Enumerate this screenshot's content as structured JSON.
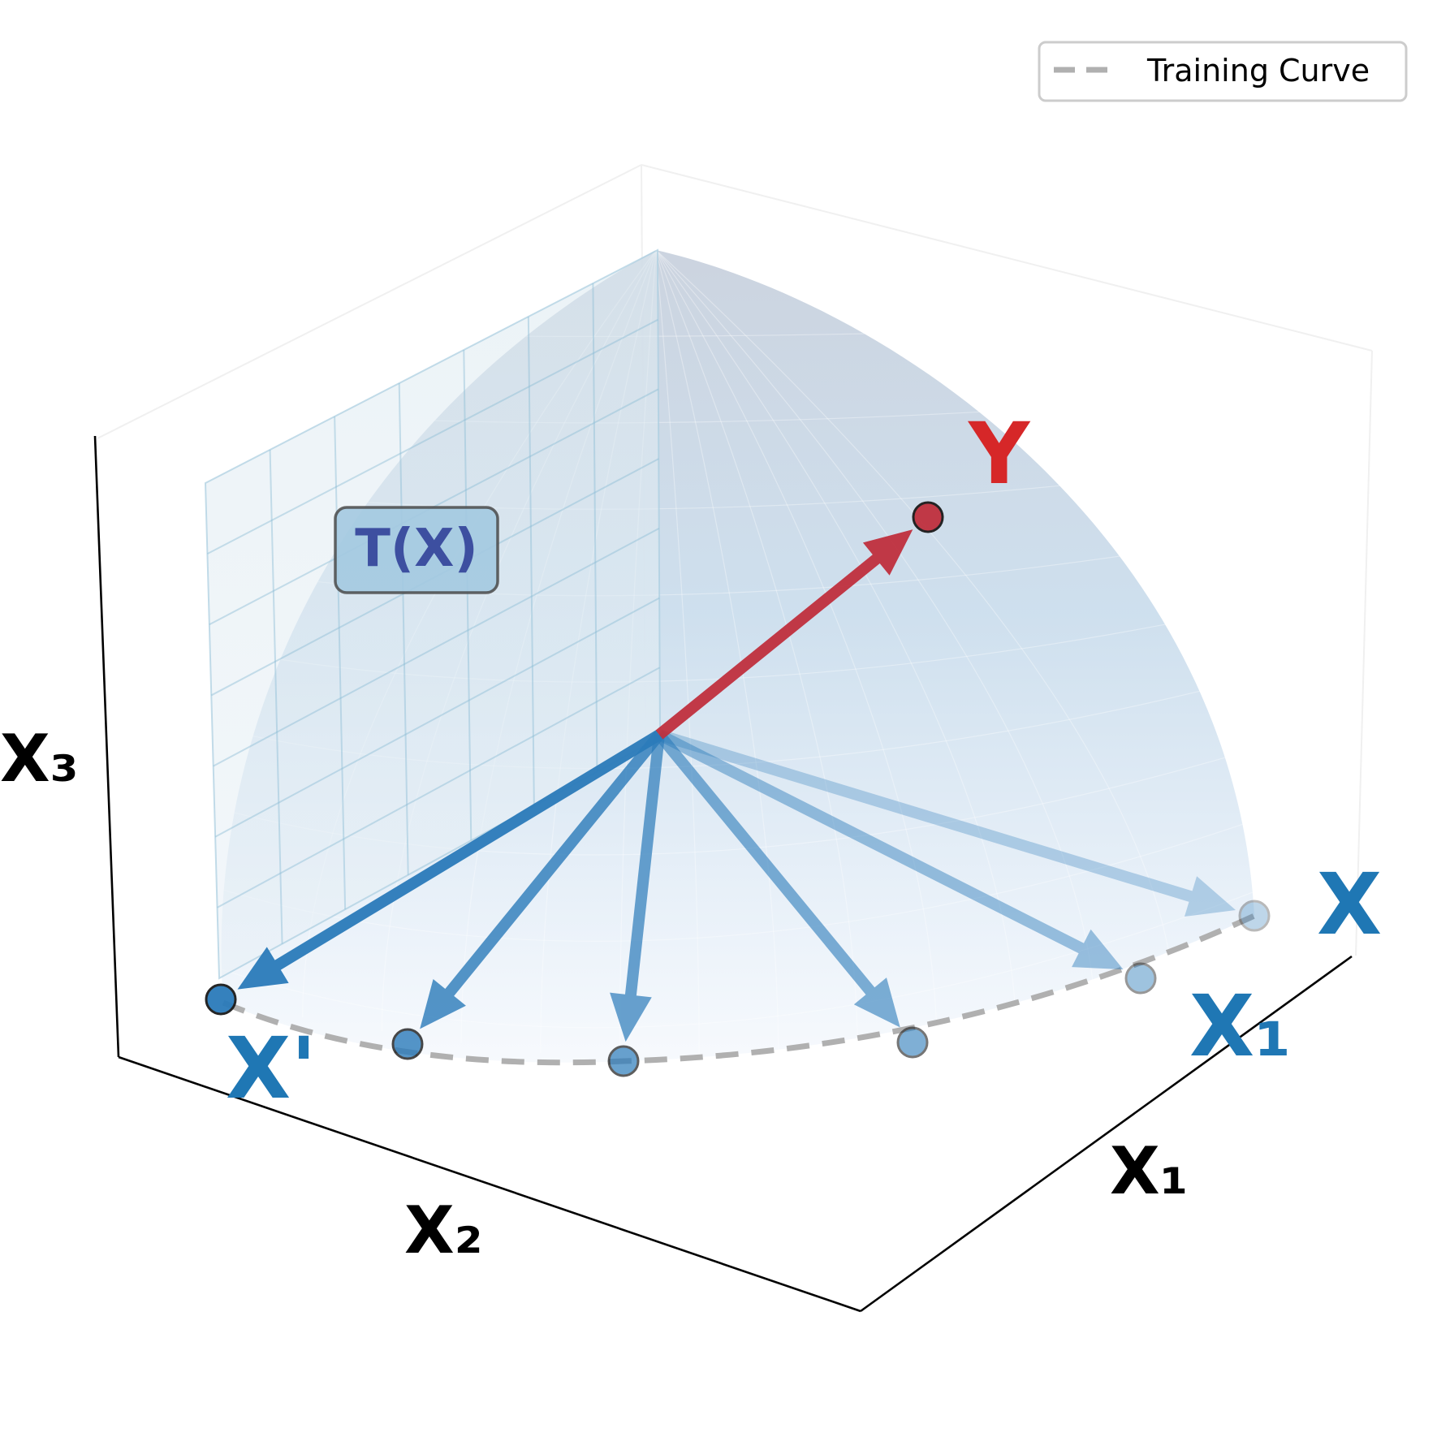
{
  "legend": {
    "entries": [
      {
        "label": "Training Curve",
        "color": "#b0b0b0",
        "style": "dashed"
      }
    ],
    "placement": "top-right"
  },
  "axes": {
    "x1": {
      "label": "X₁"
    },
    "x2": {
      "label": "X₂"
    },
    "x3": {
      "label": "X₃"
    }
  },
  "labels": {
    "x": "X",
    "x1": "X₁",
    "x_prime": "X'",
    "y": "Y",
    "transform": "T(X)"
  },
  "colors": {
    "blue": "#2b7bba",
    "red": "#c0303e",
    "label_blue": "#1f77b4",
    "label_red": "#d62728",
    "sphere": "#aec6de",
    "plane": "#a9cde0",
    "transform_box_fill": "#a3c9e0",
    "transform_box_text": "#3d4fa0",
    "curve": "#b0b0b0"
  },
  "vectors": [
    {
      "name": "X",
      "color": "blue",
      "opacity": 0.3
    },
    {
      "name": "X₁",
      "color": "blue",
      "opacity": 0.45
    },
    {
      "name": "intermediate-3",
      "color": "blue",
      "opacity": 0.6
    },
    {
      "name": "intermediate-2",
      "color": "blue",
      "opacity": 0.7
    },
    {
      "name": "intermediate-1",
      "color": "blue",
      "opacity": 0.8
    },
    {
      "name": "X'",
      "color": "blue",
      "opacity": 0.95
    },
    {
      "name": "Y",
      "color": "red",
      "opacity": 0.95
    }
  ]
}
